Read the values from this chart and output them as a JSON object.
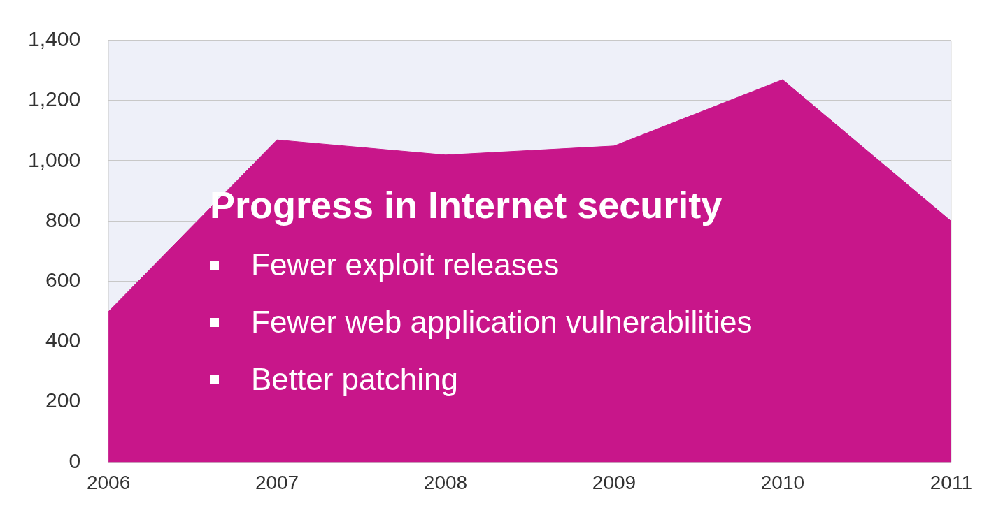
{
  "chart_data": {
    "type": "area",
    "categories": [
      "2006",
      "2007",
      "2008",
      "2009",
      "2010",
      "2011"
    ],
    "series": [
      {
        "color": "#c8168a",
        "values": [
          500,
          1070,
          1020,
          1050,
          1270,
          800
        ]
      }
    ],
    "ylim": [
      0,
      1400
    ],
    "yticks": [
      0,
      200,
      400,
      600,
      800,
      {
        "value": 1000,
        "label": "1,000"
      },
      {
        "value": 1200,
        "label": "1,200"
      },
      {
        "value": 1400,
        "label": "1,400"
      }
    ],
    "grid": "y",
    "legend": false,
    "annotations": [
      "Progress in Internet security",
      "Fewer exploit releases",
      "Fewer web application vulnerabilities",
      "Better patching"
    ]
  }
}
